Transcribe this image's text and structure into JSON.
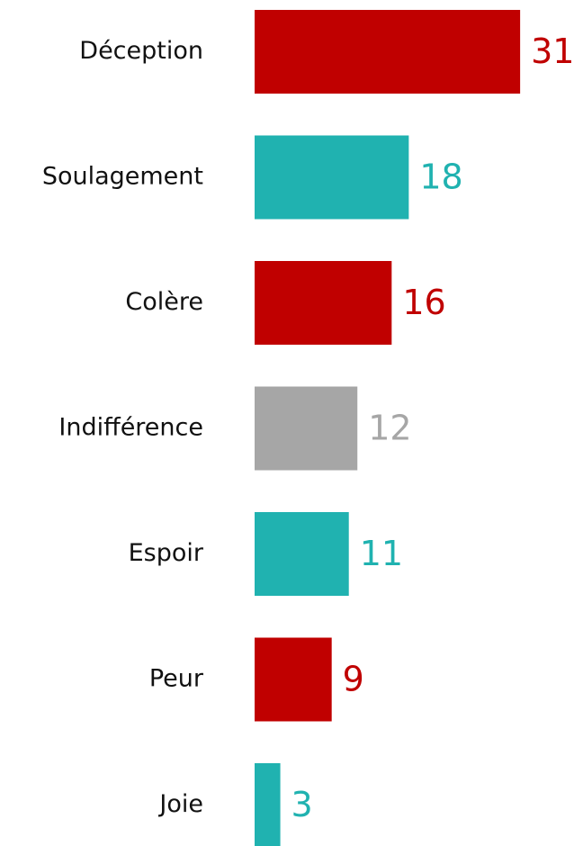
{
  "chart_data": {
    "type": "bar",
    "orientation": "horizontal",
    "categories": [
      "Déception",
      "Soulagement",
      "Colère",
      "Indifférence",
      "Espoir",
      "Peur",
      "Joie"
    ],
    "values": [
      31,
      18,
      16,
      12,
      11,
      9,
      3
    ],
    "colors": [
      "#c00000",
      "#20b2b0",
      "#c00000",
      "#a6a6a6",
      "#20b2b0",
      "#c00000",
      "#20b2b0"
    ]
  }
}
